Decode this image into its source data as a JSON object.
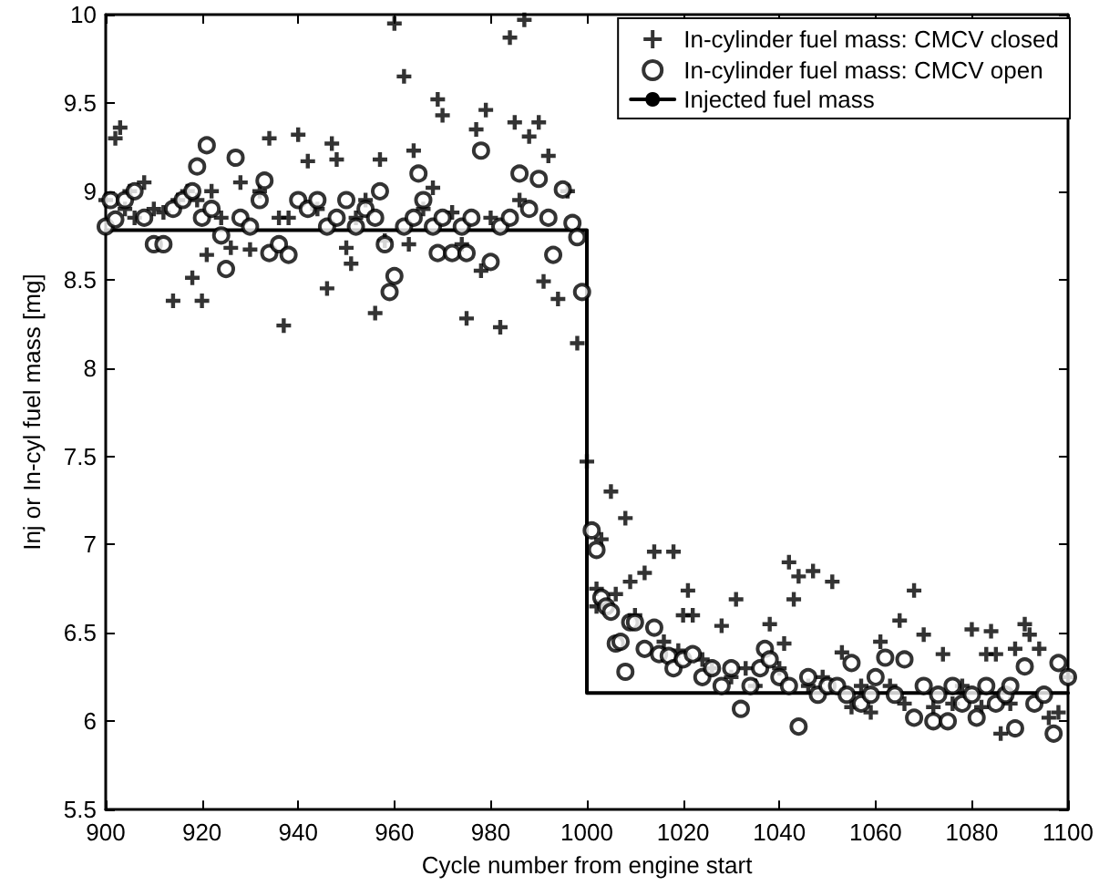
{
  "chart_data": {
    "type": "scatter",
    "xlabel": "Cycle number from engine start",
    "ylabel": "Inj or In-cyl fuel mass [mg]",
    "xlim": [
      900,
      1100
    ],
    "xticks": [
      900,
      920,
      940,
      960,
      980,
      1000,
      1020,
      1040,
      1060,
      1080,
      1100
    ],
    "ylim": [
      5.5,
      10
    ],
    "yticks": [
      5.5,
      6,
      6.5,
      7,
      7.5,
      8,
      8.5,
      9,
      9.5,
      10
    ],
    "grid": false,
    "legend": "top right",
    "series": [
      {
        "name": "In-cylinder fuel mass: CMCV closed",
        "marker": "cross",
        "color": "#000000",
        "x": [
          900,
          902,
          903,
          904,
          905,
          906,
          908,
          910,
          912,
          914,
          915,
          917,
          918,
          919,
          920,
          921,
          922,
          924,
          926,
          928,
          930,
          932,
          934,
          936,
          937,
          938,
          940,
          942,
          944,
          946,
          947,
          948,
          950,
          951,
          952,
          954,
          956,
          957,
          958,
          960,
          962,
          963,
          964,
          966,
          968,
          969,
          970,
          972,
          974,
          975,
          977,
          978,
          979,
          980,
          982,
          984,
          985,
          986,
          987,
          988,
          990,
          991,
          992,
          994,
          996,
          998,
          1000,
          1002,
          1002,
          1003,
          1005,
          1006,
          1008,
          1009,
          1010,
          1012,
          1014,
          1016,
          1018,
          1019,
          1020,
          1021,
          1022,
          1024,
          1026,
          1028,
          1030,
          1031,
          1033,
          1035,
          1038,
          1040,
          1041,
          1042,
          1043,
          1044,
          1046,
          1047,
          1049,
          1051,
          1053,
          1055,
          1057,
          1059,
          1061,
          1063,
          1065,
          1066,
          1068,
          1070,
          1072,
          1074,
          1076,
          1078,
          1080,
          1082,
          1083,
          1084,
          1085,
          1086,
          1088,
          1089,
          1091,
          1092,
          1094,
          1096,
          1098,
          1100
        ],
        "values": [
          8.95,
          9.3,
          9.36,
          8.9,
          9.0,
          8.85,
          9.05,
          8.9,
          8.88,
          8.38,
          8.95,
          9.0,
          8.51,
          8.95,
          8.38,
          8.64,
          9.0,
          8.85,
          8.68,
          9.05,
          8.67,
          9.0,
          9.3,
          8.85,
          8.24,
          8.85,
          9.32,
          9.17,
          8.9,
          8.45,
          9.27,
          9.18,
          8.68,
          8.59,
          8.85,
          8.95,
          8.31,
          9.18,
          8.72,
          9.95,
          9.65,
          8.7,
          9.23,
          8.9,
          9.02,
          9.52,
          9.43,
          8.88,
          8.7,
          8.28,
          9.35,
          8.55,
          9.46,
          8.85,
          8.23,
          9.87,
          9.39,
          8.95,
          9.97,
          9.31,
          9.39,
          8.49,
          9.2,
          8.39,
          9.0,
          8.14,
          7.47,
          6.75,
          6.65,
          7.03,
          7.3,
          6.72,
          7.15,
          6.79,
          6.6,
          6.84,
          6.96,
          6.45,
          6.96,
          6.4,
          6.6,
          6.74,
          6.6,
          6.35,
          6.3,
          6.54,
          6.25,
          6.69,
          6.3,
          6.2,
          6.55,
          6.3,
          6.44,
          6.9,
          6.69,
          6.82,
          6.2,
          6.85,
          6.25,
          6.79,
          6.39,
          6.08,
          6.2,
          6.05,
          6.45,
          6.2,
          6.57,
          6.1,
          6.74,
          6.49,
          6.08,
          6.38,
          6.1,
          6.2,
          6.52,
          6.08,
          6.38,
          6.51,
          6.38,
          5.93,
          6.1,
          6.41,
          6.55,
          6.49,
          6.41,
          6.02,
          6.05,
          6.25
        ]
      },
      {
        "name": "In-cylinder fuel mass: CMCV open",
        "marker": "circle",
        "color": "#000000",
        "x": [
          900,
          901,
          902,
          904,
          906,
          908,
          910,
          912,
          914,
          916,
          918,
          919,
          920,
          921,
          922,
          924,
          925,
          927,
          928,
          930,
          932,
          933,
          934,
          936,
          938,
          940,
          942,
          944,
          946,
          948,
          950,
          952,
          954,
          956,
          957,
          958,
          959,
          960,
          962,
          964,
          965,
          966,
          968,
          969,
          970,
          972,
          974,
          975,
          976,
          978,
          980,
          982,
          984,
          986,
          988,
          990,
          992,
          993,
          995,
          997,
          998,
          999,
          1001,
          1002,
          1003,
          1004,
          1005,
          1006,
          1007,
          1008,
          1009,
          1010,
          1012,
          1014,
          1015,
          1017,
          1018,
          1020,
          1022,
          1024,
          1026,
          1028,
          1030,
          1032,
          1034,
          1036,
          1037,
          1038,
          1040,
          1042,
          1044,
          1046,
          1048,
          1050,
          1052,
          1054,
          1055,
          1057,
          1059,
          1060,
          1062,
          1064,
          1066,
          1068,
          1070,
          1072,
          1073,
          1075,
          1076,
          1078,
          1080,
          1081,
          1083,
          1085,
          1087,
          1088,
          1089,
          1091,
          1093,
          1095,
          1097,
          1098,
          1100
        ],
        "values": [
          8.8,
          8.95,
          8.84,
          8.95,
          9.0,
          8.85,
          8.7,
          8.7,
          8.9,
          8.95,
          9.0,
          9.14,
          8.85,
          9.26,
          8.9,
          8.75,
          8.56,
          9.19,
          8.85,
          8.8,
          8.95,
          9.06,
          8.65,
          8.7,
          8.64,
          8.95,
          8.9,
          8.95,
          8.8,
          8.85,
          8.95,
          8.8,
          8.9,
          8.85,
          9.0,
          8.7,
          8.43,
          8.52,
          8.8,
          8.85,
          9.1,
          8.95,
          8.8,
          8.65,
          8.85,
          8.65,
          8.8,
          8.65,
          8.85,
          9.23,
          8.6,
          8.8,
          8.85,
          9.1,
          8.9,
          9.07,
          8.85,
          8.64,
          9.01,
          8.82,
          8.74,
          8.43,
          7.08,
          6.97,
          6.7,
          6.65,
          6.62,
          6.44,
          6.45,
          6.28,
          6.56,
          6.56,
          6.41,
          6.53,
          6.38,
          6.37,
          6.3,
          6.35,
          6.38,
          6.25,
          6.3,
          6.2,
          6.3,
          6.07,
          6.2,
          6.3,
          6.41,
          6.35,
          6.25,
          6.2,
          5.97,
          6.25,
          6.15,
          6.2,
          6.2,
          6.15,
          6.33,
          6.1,
          6.15,
          6.25,
          6.36,
          6.15,
          6.35,
          6.02,
          6.2,
          6.0,
          6.15,
          6.0,
          6.2,
          6.1,
          6.15,
          6.02,
          6.2,
          6.1,
          6.15,
          6.2,
          5.96,
          6.31,
          6.1,
          6.15,
          5.93,
          6.33,
          6.25
        ]
      },
      {
        "name": "Injected fuel mass",
        "type": "line",
        "marker": "none",
        "line_style": "solid",
        "color": "#000000",
        "x": [
          900,
          1000,
          1000,
          1100
        ],
        "values": [
          8.78,
          8.78,
          6.16,
          6.16
        ]
      }
    ]
  }
}
